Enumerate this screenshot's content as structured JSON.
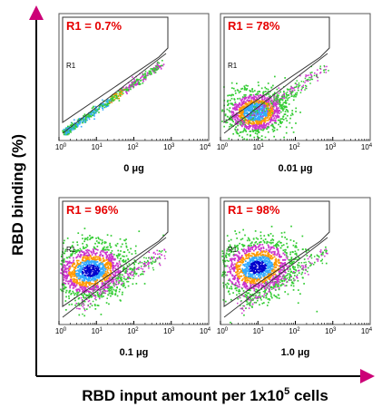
{
  "figure": {
    "y_axis_label": "RBD binding (%)",
    "x_axis_label_pre": "RBD input amount per 1x10",
    "x_axis_label_sup": "5",
    "x_axis_label_post": " cells"
  },
  "colors": {
    "gate_label": "#e60000",
    "axis": "#000000",
    "frame": "#555555",
    "arrow": "#cc0077",
    "dot_low": "#33cc33",
    "dot_mid": "#cc33cc",
    "dot_high": "#ff9900",
    "dot_dense": "#33aaff",
    "dot_core": "#0000cc"
  },
  "chart_data": [
    {
      "type": "scatter",
      "panel": "top-left",
      "gate_label": "R1 = 0.7%",
      "gate_name": "R1",
      "r1_percent": 0.7,
      "dose_label": "0 μg",
      "x_tick_labels": [
        "10",
        "10",
        "10",
        "10",
        "10"
      ],
      "x_tick_exponents": [
        "0",
        "1",
        "2",
        "3",
        "4"
      ],
      "xscale": "log",
      "xlim": [
        1,
        10000
      ]
    },
    {
      "type": "scatter",
      "panel": "top-right",
      "gate_label": "R1 = 78%",
      "gate_name": "R1",
      "r1_percent": 78,
      "dose_label": "0.01 μg",
      "x_tick_labels": [
        "10",
        "10",
        "10",
        "10",
        "10"
      ],
      "x_tick_exponents": [
        "0",
        "1",
        "2",
        "3",
        "4"
      ],
      "xscale": "log",
      "xlim": [
        1,
        10000
      ]
    },
    {
      "type": "scatter",
      "panel": "bottom-left",
      "gate_label": "R1 = 96%",
      "gate_name": "R1",
      "r1_percent": 96,
      "dose_label": "0.1 μg",
      "x_tick_labels": [
        "10",
        "10",
        "10",
        "10",
        "10"
      ],
      "x_tick_exponents": [
        "0",
        "1",
        "2",
        "3",
        "4"
      ],
      "xscale": "log",
      "xlim": [
        1,
        10000
      ]
    },
    {
      "type": "scatter",
      "panel": "bottom-right",
      "gate_label": "R1 = 98%",
      "gate_name": "R1",
      "r1_percent": 98,
      "dose_label": "1.0 μg",
      "x_tick_labels": [
        "10",
        "10",
        "10",
        "10",
        "10"
      ],
      "x_tick_exponents": [
        "0",
        "1",
        "2",
        "3",
        "4"
      ],
      "xscale": "log",
      "xlim": [
        1,
        10000
      ]
    }
  ]
}
